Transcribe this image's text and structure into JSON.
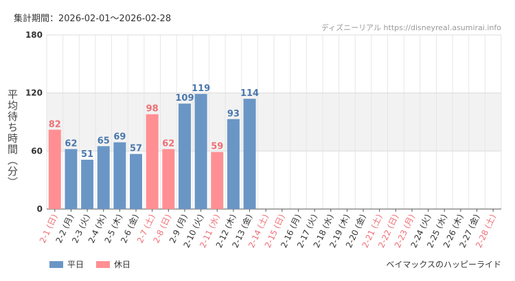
{
  "period_label": "集計期間：2026-02-01～2026-02-28",
  "source_label": "ディズニーリアル https://disneyreal.asumirai.info",
  "ride_name": "ベイマックスのハッピーライド",
  "colors": {
    "weekday": "#6a96c6",
    "holiday": "#ff8f93",
    "weekday_text": "#4a78ad",
    "holiday_text": "#ee6f75",
    "band": "#f2f2f2"
  },
  "chart_data": {
    "type": "bar",
    "ylabel": "平均待ち時間（分）",
    "ylim": [
      0,
      180
    ],
    "yticks": [
      0,
      60,
      120,
      180
    ],
    "band": [
      60,
      120
    ],
    "legend": [
      {
        "name": "平日",
        "kind": "weekday"
      },
      {
        "name": "休日",
        "kind": "holiday"
      }
    ],
    "categories": [
      "2-1 (日)",
      "2-2 (月)",
      "2-3 (火)",
      "2-4 (水)",
      "2-5 (木)",
      "2-6 (金)",
      "2-7 (土)",
      "2-8 (日)",
      "2-9 (月)",
      "2-10 (火)",
      "2-11 (水)",
      "2-12 (木)",
      "2-13 (金)",
      "2-14 (土)",
      "2-15 (日)",
      "2-16 (月)",
      "2-17 (火)",
      "2-18 (水)",
      "2-19 (木)",
      "2-20 (金)",
      "2-21 (土)",
      "2-22 (日)",
      "2-23 (月)",
      "2-24 (火)",
      "2-25 (水)",
      "2-26 (木)",
      "2-27 (金)",
      "2-28 (土)"
    ],
    "kinds": [
      "holiday",
      "weekday",
      "weekday",
      "weekday",
      "weekday",
      "weekday",
      "holiday",
      "holiday",
      "weekday",
      "weekday",
      "holiday",
      "weekday",
      "weekday",
      "holiday",
      "holiday",
      "weekday",
      "weekday",
      "weekday",
      "weekday",
      "weekday",
      "holiday",
      "holiday",
      "holiday",
      "weekday",
      "weekday",
      "weekday",
      "weekday",
      "holiday"
    ],
    "values": [
      82,
      62,
      51,
      65,
      69,
      57,
      98,
      62,
      109,
      119,
      59,
      93,
      114,
      null,
      null,
      null,
      null,
      null,
      null,
      null,
      null,
      null,
      null,
      null,
      null,
      null,
      null,
      null
    ]
  }
}
